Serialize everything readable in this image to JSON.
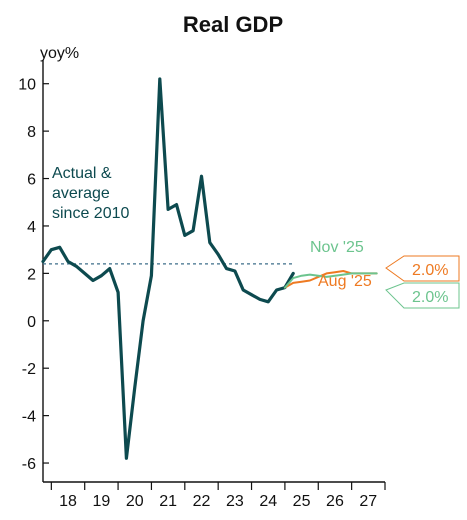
{
  "chart_data": {
    "type": "line",
    "title": "Real GDP",
    "ylabel": "yoy%",
    "xlabel": "",
    "ylim": [
      -6.8,
      11
    ],
    "xlim": [
      2017.75,
      2028.0
    ],
    "y_ticks": [
      "10",
      "8",
      "6",
      "4",
      "2",
      "0",
      "-2",
      "-4",
      "-6"
    ],
    "x_ticks": [
      "18",
      "19",
      "20",
      "21",
      "22",
      "23",
      "24",
      "25",
      "26",
      "27"
    ],
    "grid": false,
    "colors": {
      "actual": "#0d4a4f",
      "average": "#3d6e8a",
      "nov": "#6cc48e",
      "aug": "#ee7a22",
      "axis": "#111111"
    },
    "annotations": {
      "actual_label": [
        "Actual &",
        "average",
        "since 2010"
      ],
      "nov_label": "Nov '25",
      "aug_label": "Aug '25",
      "aug_end_value": "2.0%",
      "nov_end_value": "2.0%"
    },
    "average_since_2010": 2.4,
    "series": [
      {
        "x": [
          2017.75,
          2018.0,
          2018.25,
          2018.5,
          2018.75,
          2019.0,
          2019.25,
          2019.5,
          2019.75,
          2020.0,
          2020.25,
          2020.5,
          2020.75,
          2021.0,
          2021.25,
          2021.5,
          2021.75,
          2022.0,
          2022.25,
          2022.5,
          2022.75,
          2023.0,
          2023.25,
          2023.5,
          2023.75,
          2024.0,
          2024.25,
          2024.5,
          2024.75,
          2025.0,
          2025.25
        ],
        "values": [
          2.5,
          3.0,
          3.1,
          2.5,
          2.3,
          2.0,
          1.7,
          1.9,
          2.2,
          1.2,
          -5.8,
          -2.8,
          0.0,
          1.9,
          10.2,
          4.7,
          4.9,
          3.6,
          3.8,
          6.1,
          3.3,
          2.8,
          2.2,
          2.1,
          1.3,
          1.1,
          0.9,
          0.8,
          1.3,
          1.4,
          2.0
        ]
      },
      {
        "name": "Nov '25",
        "x": [
          2025.0,
          2025.25,
          2025.5,
          2025.75,
          2026.0,
          2026.25,
          2026.5,
          2026.75,
          2027.0,
          2027.25,
          2027.5,
          2027.75
        ],
        "values": [
          1.4,
          1.8,
          1.9,
          1.95,
          1.9,
          1.85,
          1.9,
          1.95,
          2.0,
          2.0,
          2.0,
          2.0
        ]
      },
      {
        "name": "Aug '25",
        "x": [
          2025.0,
          2025.25,
          2025.5,
          2025.75,
          2026.0,
          2026.25,
          2026.5,
          2026.75,
          2027.0,
          2027.25,
          2027.5,
          2027.75
        ],
        "values": [
          1.4,
          1.6,
          1.65,
          1.7,
          1.85,
          2.0,
          2.05,
          2.1,
          2.0,
          2.0,
          2.0,
          2.0
        ]
      }
    ]
  }
}
